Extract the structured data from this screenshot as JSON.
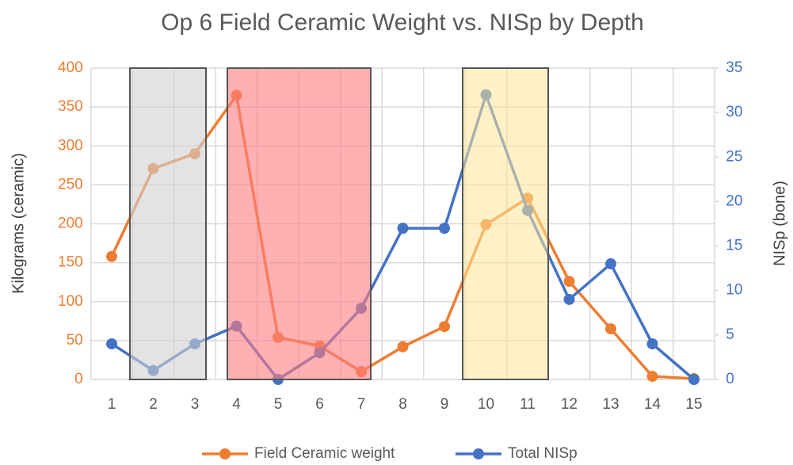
{
  "chart_data": {
    "type": "line",
    "title": "Op 6 Field Ceramic Weight vs. NISp by Depth",
    "y_label": "Kilograms (ceramic)",
    "y2_label": "NISp (bone)",
    "categories": [
      "1",
      "2",
      "3",
      "4",
      "5",
      "6",
      "7",
      "8",
      "9",
      "10",
      "11",
      "12",
      "13",
      "14",
      "15"
    ],
    "series": [
      {
        "name": "Field Ceramic weight",
        "color": "#ed7d31",
        "values": [
          158,
          271,
          290,
          365,
          54,
          43,
          10,
          42,
          68,
          199,
          233,
          126,
          65,
          4,
          1
        ]
      },
      {
        "name": "Total NISp",
        "color": "#4472c4",
        "axis": "y2",
        "values": [
          4,
          1,
          4,
          6,
          0,
          3,
          8,
          17,
          17,
          32,
          19,
          9,
          13,
          4,
          0
        ]
      }
    ],
    "ylim": [
      0,
      400
    ],
    "yticks": [
      0,
      50,
      100,
      150,
      200,
      250,
      300,
      350,
      400
    ],
    "y2lim": [
      0,
      35
    ],
    "y2ticks": [
      0,
      5,
      10,
      15,
      20,
      25,
      30,
      35
    ],
    "grid": true,
    "legend": "bottom"
  }
}
